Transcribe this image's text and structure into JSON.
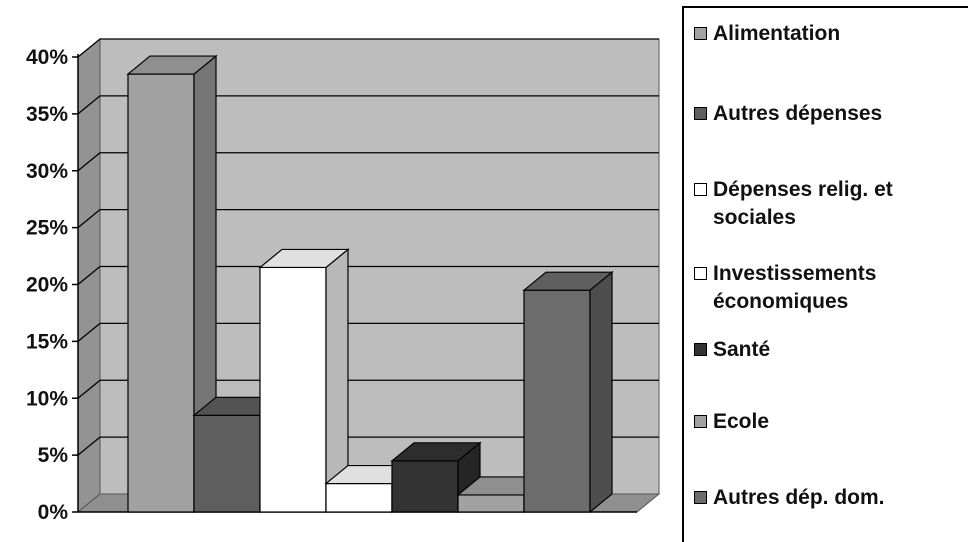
{
  "chart_data": {
    "type": "bar",
    "style": "3d-column",
    "categories": [
      "Alimentation",
      "Autres dépenses",
      "Dépenses relig. et sociales",
      "Investissements économiques",
      "Santé",
      "Ecole",
      "Autres dép. dom."
    ],
    "values": [
      38.5,
      8.5,
      21.5,
      2.5,
      4.5,
      1.5,
      19.5
    ],
    "colors": [
      "#a2a2a2",
      "#5e5e5e",
      "#ffffff",
      "#ffffff",
      "#333333",
      "#a2a2a2",
      "#6c6c6c"
    ],
    "yticks": [
      "0%",
      "5%",
      "10%",
      "15%",
      "20%",
      "25%",
      "30%",
      "35%",
      "40%"
    ],
    "ylim": [
      0,
      40
    ],
    "grid": true,
    "wall_color": "#bdbdbd",
    "legend_position": "right",
    "title": "",
    "xlabel": "",
    "ylabel": ""
  },
  "legend": [
    {
      "label": "Alimentation",
      "color": "#a2a2a2"
    },
    {
      "label": "Autres dépenses",
      "color": "#5e5e5e"
    },
    {
      "label": "Dépenses relig. et\nsociales",
      "color": "#ffffff"
    },
    {
      "label": " Investissements\néconomiques",
      "color": "#ffffff"
    },
    {
      "label": "Santé",
      "color": "#333333"
    },
    {
      "label": "Ecole",
      "color": "#a2a2a2"
    },
    {
      "label": " Autres dép. dom.",
      "color": "#6c6c6c"
    }
  ]
}
